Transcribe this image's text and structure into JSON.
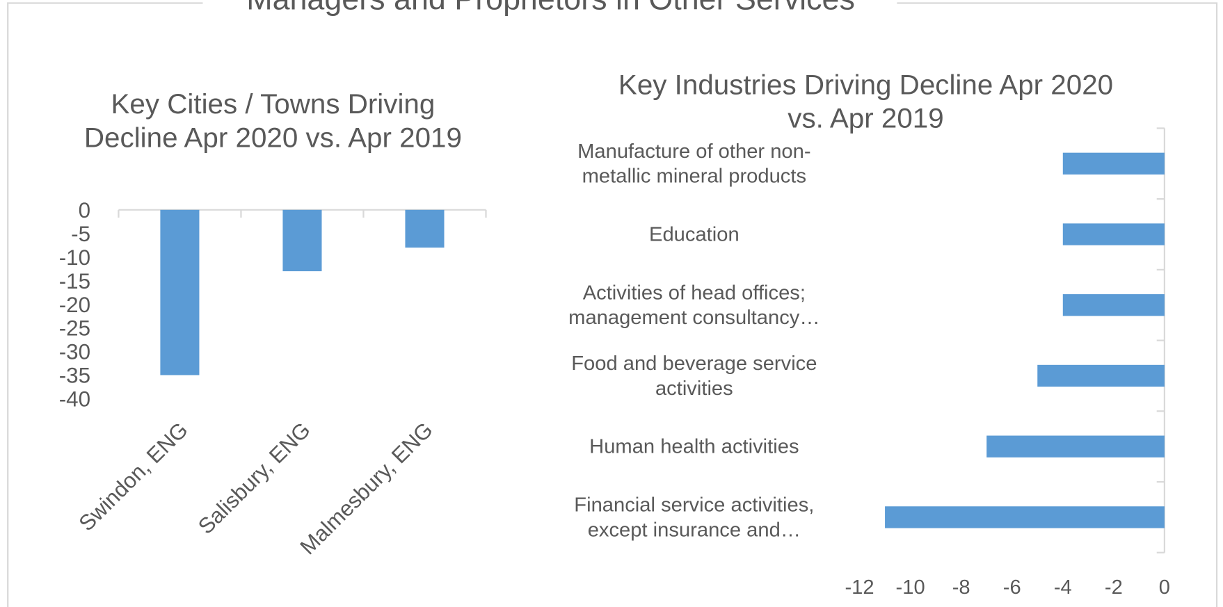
{
  "title": "Managers and Proprietors in Other Services",
  "chart_data": [
    {
      "type": "bar",
      "title": "Key Cities / Towns Driving Decline Apr 2020 vs. Apr 2019",
      "categories": [
        "Swindon, ENG",
        "Salisbury, ENG",
        "Malmesbury, ENG"
      ],
      "values": [
        -35,
        -13,
        -8
      ],
      "color": "#5b9bd5",
      "ylim": [
        -40,
        0
      ],
      "yticks": [
        0,
        -5,
        -10,
        -15,
        -20,
        -25,
        -30,
        -35,
        -40
      ]
    },
    {
      "type": "hbar",
      "title": "Key Industries Driving Decline Apr 2020 vs. Apr 2019",
      "categories": [
        "Manufacture of other non-metallic mineral products",
        "Education",
        "Activities of head offices; management consultancy…",
        "Food and beverage service activities",
        "Human health activities",
        "Financial service activities, except insurance and…"
      ],
      "values": [
        -4,
        -4,
        -4,
        -5,
        -7,
        -11
      ],
      "color": "#5b9bd5",
      "xlim": [
        -12,
        0
      ],
      "xticks": [
        -12,
        -10,
        -8,
        -6,
        -4,
        -2,
        0
      ]
    }
  ]
}
